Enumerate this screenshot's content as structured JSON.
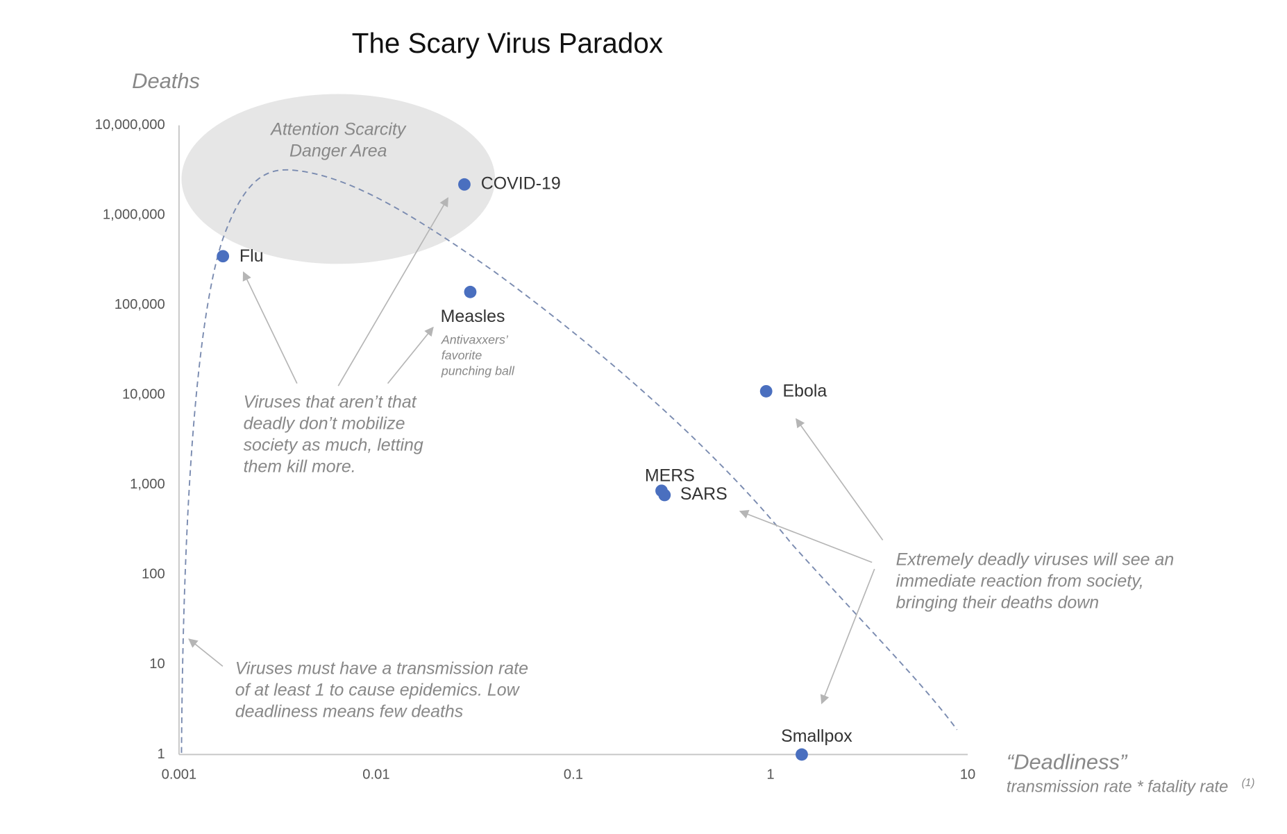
{
  "chart_data": {
    "type": "scatter",
    "title": "The Scary Virus Paradox",
    "y_label": "Deaths",
    "x_label": "“Deadliness”",
    "x_sublabel": "transmission rate * fatality rate",
    "x_sublabel_note": "(1)",
    "labels": [
      "Flu",
      "COVID-19",
      "Measles",
      "Ebola",
      "MERS",
      "SARS",
      "Smallpox"
    ],
    "x": [
      0.00167,
      0.028,
      0.03,
      0.95,
      0.28,
      0.29,
      1.44
    ],
    "values": [
      350000,
      2200000,
      140000,
      11000,
      860,
      770,
      1
    ],
    "color": "#4a6fbf",
    "xscale": "log",
    "yscale": "log",
    "xlim": [
      0.001,
      10
    ],
    "ylim": [
      1,
      10000000
    ],
    "xticks": [
      0.001,
      0.01,
      0.1,
      1,
      10
    ],
    "yticks": [
      1,
      10,
      100,
      {
        "value": 1000,
        "label": "1,000"
      },
      {
        "value": 10000,
        "label": "10,000"
      },
      {
        "value": 100000,
        "label": "100,000"
      },
      {
        "value": 1000000,
        "label": "1,000,000"
      },
      {
        "value": 10000000,
        "label": "10,000,000"
      }
    ],
    "grid": false,
    "annotations": {
      "danger_area": [
        "Attention Scarcity",
        "Danger Area"
      ],
      "measles_note": [
        "Antivaxxers’",
        "favorite",
        "punching ball"
      ],
      "not_deadly": [
        "Viruses that aren’t that",
        "deadly don’t mobilize",
        "society as much, letting",
        "them kill more."
      ],
      "transmission": [
        "Viruses must have a transmission rate",
        "of at least 1 to cause epidemics. Low",
        "deadliness means few deaths"
      ],
      "extremely_deadly": [
        "Extremely deadly viruses will see an",
        "immediate reaction from society,",
        "bringing their deaths down"
      ]
    }
  }
}
